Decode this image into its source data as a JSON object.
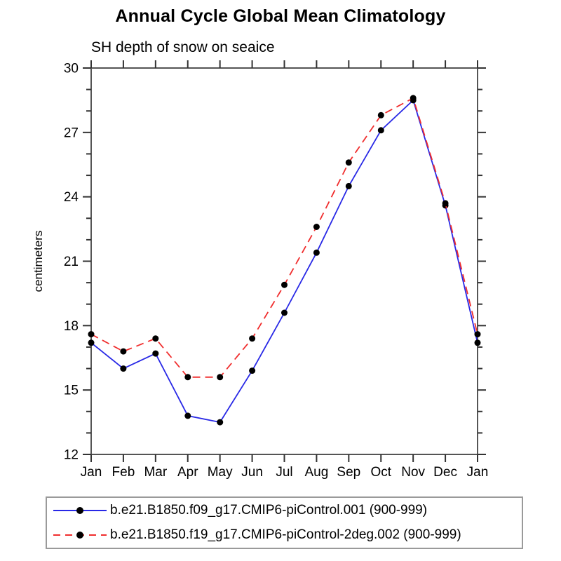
{
  "header": {
    "title": "Annual Cycle Global Mean Climatology",
    "subtitle": "SH depth of snow on seaice"
  },
  "chart_data": {
    "type": "line",
    "title": "Annual Cycle Global Mean Climatology",
    "subtitle": "SH depth of snow on seaice",
    "xlabel": "",
    "ylabel": "centimeters",
    "categories": [
      "Jan",
      "Feb",
      "Mar",
      "Apr",
      "May",
      "Jun",
      "Jul",
      "Aug",
      "Sep",
      "Oct",
      "Nov",
      "Dec",
      "Jan"
    ],
    "ylim": [
      12,
      30
    ],
    "ytick_major": [
      12,
      15,
      18,
      21,
      24,
      27,
      30
    ],
    "ytick_minor_step": 1,
    "grid": false,
    "legend_position": "bottom",
    "marker_color": "#000000",
    "frame_color": "#555555",
    "series": [
      {
        "name": "b.e21.B1850.f09_g17.CMIP6-piControl.001 (900-999)",
        "color": "#2828e6",
        "style": "solid",
        "marker": "filled-circle",
        "values": [
          17.2,
          16.0,
          16.7,
          13.8,
          13.5,
          15.9,
          18.6,
          21.4,
          24.5,
          27.1,
          28.5,
          23.6,
          17.2
        ]
      },
      {
        "name": "b.e21.B1850.f19_g17.CMIP6-piControl-2deg.002 (900-999)",
        "color": "#f02d2d",
        "style": "dashed",
        "marker": "filled-circle",
        "values": [
          17.6,
          16.8,
          17.4,
          15.6,
          15.6,
          17.4,
          19.9,
          22.6,
          25.6,
          27.8,
          28.6,
          23.7,
          17.6
        ]
      }
    ]
  }
}
